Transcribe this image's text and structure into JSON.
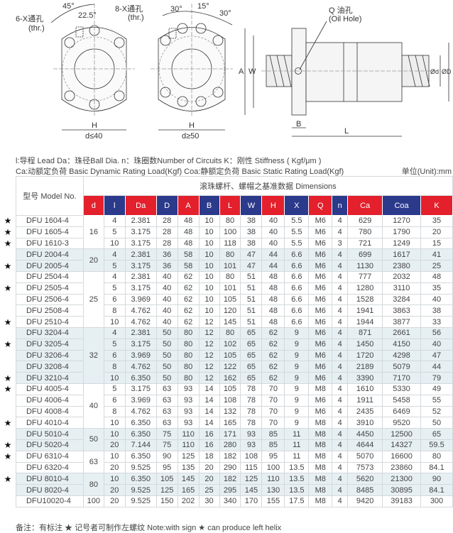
{
  "drawing": {
    "flange1": {
      "holes": "6-X通孔",
      "thr": "(thr.)",
      "angle1": "45°",
      "angle2": "22.5°",
      "width": "H",
      "condition": "d≤40"
    },
    "flange2": {
      "holes": "8-X通孔",
      "thr": "(thr.)",
      "angle1": "30°",
      "angle2": "15°",
      "angle3": "30°",
      "width": "H",
      "condition": "d≥50"
    },
    "side": {
      "oil": "Q 油孔",
      "oil_en": "(Oil Hole)",
      "A": "A",
      "W": "W",
      "B": "B",
      "L": "L",
      "d": "Ød",
      "D": "ØD"
    }
  },
  "legend": {
    "line1": "l:导程 Lead  Da：珠径Ball Dia.   n：珠圈数Number of Circuits   K：刚性 Stiffness ( Kgf/μm )",
    "line2": "Ca:动额定负荷 Basic Dynamic Rating Load(Kgf)   Coa:静额定负荷 Basic Static Rating Load(Kgf)",
    "unit": "单位(Unit):mm"
  },
  "table": {
    "model_header": "型号 Model No.",
    "dims_header": "滚珠螺杆、螺帽之基准数据 Dimensions",
    "columns": [
      {
        "label": "d",
        "color": "#e3202c"
      },
      {
        "label": "l",
        "color": "#2c3a8c"
      },
      {
        "label": "Da",
        "color": "#e3202c"
      },
      {
        "label": "D",
        "color": "#2c3a8c"
      },
      {
        "label": "A",
        "color": "#e3202c"
      },
      {
        "label": "B",
        "color": "#2c3a8c"
      },
      {
        "label": "L",
        "color": "#e3202c"
      },
      {
        "label": "W",
        "color": "#2c3a8c"
      },
      {
        "label": "H",
        "color": "#e3202c"
      },
      {
        "label": "X",
        "color": "#2c3a8c"
      },
      {
        "label": "Q",
        "color": "#e3202c"
      },
      {
        "label": "n",
        "color": "#2c3a8c"
      },
      {
        "label": "Ca",
        "color": "#e3202c"
      },
      {
        "label": "Coa",
        "color": "#2c3a8c"
      },
      {
        "label": "K",
        "color": "#e3202c"
      }
    ],
    "star_symbol": "★",
    "groups": [
      {
        "d": "16",
        "shaded": false,
        "rows": [
          {
            "star": true,
            "model": "DFU  1604-4",
            "v": [
              "4",
              "2.381",
              "28",
              "48",
              "10",
              "80",
              "38",
              "40",
              "5.5",
              "M6",
              "4",
              "629",
              "1270",
              "35"
            ]
          },
          {
            "star": true,
            "model": "DFU  1605-4",
            "v": [
              "5",
              "3.175",
              "28",
              "48",
              "10",
              "100",
              "38",
              "40",
              "5.5",
              "M6",
              "4",
              "780",
              "1790",
              "20"
            ]
          },
          {
            "star": true,
            "model": "DFU  1610-3",
            "v": [
              "10",
              "3.175",
              "28",
              "48",
              "10",
              "118",
              "38",
              "40",
              "5.5",
              "M6",
              "3",
              "721",
              "1249",
              "15"
            ]
          }
        ]
      },
      {
        "d": "20",
        "shaded": true,
        "rows": [
          {
            "star": false,
            "model": "DFU  2004-4",
            "v": [
              "4",
              "2.381",
              "36",
              "58",
              "10",
              "80",
              "47",
              "44",
              "6.6",
              "M6",
              "4",
              "699",
              "1617",
              "41"
            ]
          },
          {
            "star": true,
            "model": "DFU  2005-4",
            "v": [
              "5",
              "3.175",
              "36",
              "58",
              "10",
              "101",
              "47",
              "44",
              "6.6",
              "M6",
              "4",
              "1130",
              "2380",
              "25"
            ]
          }
        ]
      },
      {
        "d": "25",
        "shaded": false,
        "rows": [
          {
            "star": false,
            "model": "DFU  2504-4",
            "v": [
              "4",
              "2.381",
              "40",
              "62",
              "10",
              "80",
              "51",
              "48",
              "6.6",
              "M6",
              "4",
              "777",
              "2032",
              "48"
            ]
          },
          {
            "star": true,
            "model": "DFU  2505-4",
            "v": [
              "5",
              "3.175",
              "40",
              "62",
              "10",
              "101",
              "51",
              "48",
              "6.6",
              "M6",
              "4",
              "1280",
              "3110",
              "35"
            ]
          },
          {
            "star": false,
            "model": "DFU  2506-4",
            "v": [
              "6",
              "3.969",
              "40",
              "62",
              "10",
              "105",
              "51",
              "48",
              "6.6",
              "M6",
              "4",
              "1528",
              "3284",
              "40"
            ]
          },
          {
            "star": false,
            "model": "DFU  2508-4",
            "v": [
              "8",
              "4.762",
              "40",
              "62",
              "10",
              "120",
              "51",
              "48",
              "6.6",
              "M6",
              "4",
              "1941",
              "3863",
              "38"
            ]
          },
          {
            "star": true,
            "model": "DFU  2510-4",
            "v": [
              "10",
              "4.762",
              "40",
              "62",
              "12",
              "145",
              "51",
              "48",
              "6.6",
              "M6",
              "4",
              "1944",
              "3877",
              "33"
            ]
          }
        ]
      },
      {
        "d": "32",
        "shaded": true,
        "rows": [
          {
            "star": false,
            "model": "DFU  3204-4",
            "v": [
              "4",
              "2.381",
              "50",
              "80",
              "12",
              "80",
              "65",
              "62",
              "9",
              "M6",
              "4",
              "871",
              "2661",
              "56"
            ]
          },
          {
            "star": true,
            "model": "DFU  3205-4",
            "v": [
              "5",
              "3.175",
              "50",
              "80",
              "12",
              "102",
              "65",
              "62",
              "9",
              "M6",
              "4",
              "1450",
              "4150",
              "40"
            ]
          },
          {
            "star": false,
            "model": "DFU  3206-4",
            "v": [
              "6",
              "3.969",
              "50",
              "80",
              "12",
              "105",
              "65",
              "62",
              "9",
              "M6",
              "4",
              "1720",
              "4298",
              "47"
            ]
          },
          {
            "star": false,
            "model": "DFU  3208-4",
            "v": [
              "8",
              "4.762",
              "50",
              "80",
              "12",
              "122",
              "65",
              "62",
              "9",
              "M6",
              "4",
              "2189",
              "5079",
              "44"
            ]
          },
          {
            "star": true,
            "model": "DFU  3210-4",
            "v": [
              "10",
              "6.350",
              "50",
              "80",
              "12",
              "162",
              "65",
              "62",
              "9",
              "M6",
              "4",
              "3390",
              "7170",
              "79"
            ]
          }
        ]
      },
      {
        "d": "40",
        "shaded": false,
        "rows": [
          {
            "star": true,
            "model": "DFU  4005-4",
            "v": [
              "5",
              "3.175",
              "63",
              "93",
              "14",
              "105",
              "78",
              "70",
              "9",
              "M8",
              "4",
              "1610",
              "5330",
              "49"
            ]
          },
          {
            "star": false,
            "model": "DFU  4006-4",
            "v": [
              "6",
              "3.969",
              "63",
              "93",
              "14",
              "108",
              "78",
              "70",
              "9",
              "M6",
              "4",
              "1911",
              "5458",
              "55"
            ]
          },
          {
            "star": false,
            "model": "DFU  4008-4",
            "v": [
              "8",
              "4.762",
              "63",
              "93",
              "14",
              "132",
              "78",
              "70",
              "9",
              "M6",
              "4",
              "2435",
              "6469",
              "52"
            ]
          },
          {
            "star": true,
            "model": "DFU  4010-4",
            "v": [
              "10",
              "6.350",
              "63",
              "93",
              "14",
              "165",
              "78",
              "70",
              "9",
              "M8",
              "4",
              "3910",
              "9520",
              "50"
            ]
          }
        ]
      },
      {
        "d": "50",
        "shaded": true,
        "rows": [
          {
            "star": false,
            "model": "DFU  5010-4",
            "v": [
              "10",
              "6.350",
              "75",
              "110",
              "16",
              "171",
              "93",
              "85",
              "11",
              "M8",
              "4",
              "4450",
              "12500",
              "65"
            ]
          },
          {
            "star": true,
            "model": "DFU  5020-4",
            "v": [
              "20",
              "7.144",
              "75",
              "110",
              "16",
              "280",
              "93",
              "85",
              "11",
              "M8",
              "4",
              "4644",
              "14327",
              "59.5"
            ]
          }
        ]
      },
      {
        "d": "63",
        "shaded": false,
        "rows": [
          {
            "star": true,
            "model": "DFU  6310-4",
            "v": [
              "10",
              "6.350",
              "90",
              "125",
              "18",
              "182",
              "108",
              "95",
              "11",
              "M8",
              "4",
              "5070",
              "16600",
              "80"
            ]
          },
          {
            "star": false,
            "model": "DFU  6320-4",
            "v": [
              "20",
              "9.525",
              "95",
              "135",
              "20",
              "290",
              "115",
              "100",
              "13.5",
              "M8",
              "4",
              "7573",
              "23860",
              "84.1"
            ]
          }
        ]
      },
      {
        "d": "80",
        "shaded": true,
        "rows": [
          {
            "star": true,
            "model": "DFU  8010-4",
            "v": [
              "10",
              "6.350",
              "105",
              "145",
              "20",
              "182",
              "125",
              "110",
              "13.5",
              "M8",
              "4",
              "5620",
              "21300",
              "90"
            ]
          },
          {
            "star": false,
            "model": "DFU  8020-4",
            "v": [
              "20",
              "9.525",
              "125",
              "165",
              "25",
              "295",
              "145",
              "130",
              "13.5",
              "M8",
              "4",
              "8485",
              "30895",
              "84.1"
            ]
          }
        ]
      },
      {
        "d": "100",
        "shaded": false,
        "rows": [
          {
            "star": false,
            "model": "DFU10020-4",
            "v": [
              "20",
              "9.525",
              "150",
              "202",
              "30",
              "340",
              "170",
              "155",
              "17.5",
              "M8",
              "4",
              "9420",
              "39183",
              "300"
            ]
          }
        ]
      }
    ]
  },
  "note": "备注：有标注 ★ 记号者可制作左螺纹   Note:with sign ★ can produce left helix"
}
